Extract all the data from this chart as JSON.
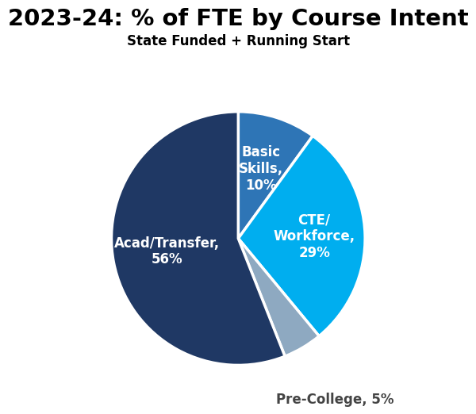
{
  "title": "2023-24: % of FTE by Course Intent",
  "subtitle": "State Funded + Running Start",
  "slices": [
    {
      "label": "Basic\nSkills,\n10%",
      "value": 10,
      "color": "#2E75B6",
      "text_color": "white"
    },
    {
      "label": "CTE/\nWorkforce,\n29%",
      "value": 29,
      "color": "#00AEEF",
      "text_color": "white"
    },
    {
      "label": "Pre-College, 5%",
      "value": 5,
      "color": "#8EA9C1",
      "text_color": "#444444"
    },
    {
      "label": "Acad/Transfer,\n56%",
      "value": 56,
      "color": "#1F3864",
      "text_color": "white"
    }
  ],
  "startangle": 90,
  "background_color": "#ffffff",
  "title_fontsize": 21,
  "subtitle_fontsize": 12,
  "label_fontsize": 12,
  "edge_color": "white",
  "edge_linewidth": 2.5
}
